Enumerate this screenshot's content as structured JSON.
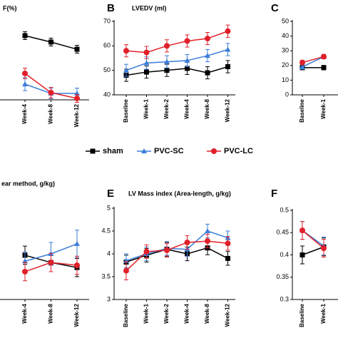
{
  "chart_data": [
    {
      "type": "line",
      "title": "F(%)",
      "categories": [
        "Week-4",
        "Week-8",
        "Week-12"
      ],
      "ylim": [
        20,
        80
      ],
      "series": [
        {
          "name": "sham",
          "color": "#000000",
          "marker": "square",
          "values": [
            69.1,
            64.2,
            58.7
          ],
          "errors": [
            3,
            3,
            3
          ]
        },
        {
          "name": "PVC-SC",
          "color": "#3b7dd8",
          "marker": "triangle",
          "values": [
            32,
            24.9,
            24.9
          ],
          "errors": [
            5,
            4,
            4
          ]
        },
        {
          "name": "PVC-LC",
          "color": "#e0202a",
          "marker": "circle",
          "values": [
            40.2,
            25.5,
            21.1
          ],
          "errors": [
            4,
            4,
            3
          ]
        }
      ]
    },
    {
      "type": "line",
      "letter": "B",
      "title": "LVEDV (ml)",
      "categories": [
        "Baseline",
        "Week-1",
        "Week-2",
        "Week-4",
        "Week-8",
        "Week-12"
      ],
      "ylim": [
        40,
        70
      ],
      "yticks": [
        40,
        50,
        60,
        70
      ],
      "series": [
        {
          "name": "sham",
          "color": "#000000",
          "marker": "square",
          "values": [
            48,
            49.3,
            50,
            50.8,
            49,
            51.5
          ],
          "errors": [
            2.5,
            2.5,
            2.5,
            2.5,
            2.5,
            2.5
          ]
        },
        {
          "name": "PVC-SC",
          "color": "#3b7dd8",
          "marker": "triangle",
          "values": [
            50,
            53,
            53.5,
            54,
            56,
            58.5
          ],
          "errors": [
            2.5,
            2.5,
            2.5,
            2.5,
            2.5,
            2.5
          ]
        },
        {
          "name": "PVC-LC",
          "color": "#e0202a",
          "marker": "circle",
          "values": [
            58,
            57.3,
            60,
            62,
            63,
            66
          ],
          "errors": [
            2.5,
            2.5,
            2.5,
            2.5,
            2.5,
            2.5
          ]
        }
      ]
    },
    {
      "type": "line",
      "letter": "C",
      "categories": [
        "Baseline",
        "Week-1"
      ],
      "ylim": [
        0,
        50
      ],
      "yticks": [
        0,
        10,
        20,
        30,
        40,
        50
      ],
      "series": [
        {
          "name": "sham",
          "color": "#000000",
          "marker": "square",
          "values": [
            18.5,
            18.5
          ],
          "errors": [
            1.5,
            1.5
          ]
        },
        {
          "name": "PVC-SC",
          "color": "#3b7dd8",
          "marker": "triangle",
          "values": [
            19,
            26
          ],
          "errors": [
            1.5,
            1.5
          ]
        },
        {
          "name": "PVC-LC",
          "color": "#e0202a",
          "marker": "circle",
          "values": [
            22,
            26
          ],
          "errors": [
            1.5,
            1.5
          ]
        }
      ]
    },
    {
      "type": "line",
      "title": "ear method, g/kg)",
      "categories": [
        "Week-4",
        "Week-8",
        "Week-12"
      ],
      "ylim": [
        3,
        5
      ],
      "series": [
        {
          "name": "sham",
          "color": "#000000",
          "marker": "square",
          "values": [
            3.97,
            3.81,
            3.7
          ],
          "errors": [
            0.2,
            0.2,
            0.2
          ]
        },
        {
          "name": "PVC-SC",
          "color": "#3b7dd8",
          "marker": "triangle",
          "values": [
            3.84,
            4.0,
            4.22
          ],
          "errors": [
            0.2,
            0.25,
            0.3
          ]
        },
        {
          "name": "PVC-LC",
          "color": "#e0202a",
          "marker": "circle",
          "values": [
            3.61,
            3.81,
            3.75
          ],
          "errors": [
            0.2,
            0.2,
            0.2
          ]
        }
      ]
    },
    {
      "type": "line",
      "letter": "E",
      "title": "LV Mass index (Area-length, g/kg)",
      "categories": [
        "Baseline",
        "Week-1",
        "Week-2",
        "Week-4",
        "Week-8",
        "Week-12"
      ],
      "ylim": [
        3,
        5
      ],
      "yticks": [
        3,
        3.5,
        4,
        4.5,
        5
      ],
      "series": [
        {
          "name": "sham",
          "color": "#000000",
          "marker": "square",
          "values": [
            3.82,
            3.97,
            4.1,
            4.0,
            4.13,
            3.9
          ],
          "errors": [
            0.15,
            0.15,
            0.15,
            0.15,
            0.15,
            0.15
          ]
        },
        {
          "name": "PVC-SC",
          "color": "#3b7dd8",
          "marker": "triangle",
          "values": [
            3.85,
            4.0,
            4.12,
            4.1,
            4.5,
            4.35
          ],
          "errors": [
            0.15,
            0.15,
            0.15,
            0.15,
            0.15,
            0.15
          ]
        },
        {
          "name": "PVC-LC",
          "color": "#e0202a",
          "marker": "circle",
          "values": [
            3.63,
            4.05,
            4.08,
            4.25,
            4.28,
            4.23
          ],
          "errors": [
            0.2,
            0.15,
            0.15,
            0.15,
            0.15,
            0.15
          ]
        }
      ]
    },
    {
      "type": "line",
      "letter": "F",
      "categories": [
        "Baseline",
        "Week-1"
      ],
      "ylim": [
        0.3,
        0.5
      ],
      "yticks": [
        0.3,
        0.35,
        0.4,
        0.45,
        0.5
      ],
      "series": [
        {
          "name": "sham",
          "color": "#000000",
          "marker": "square",
          "values": [
            0.4,
            0.418
          ],
          "errors": [
            0.02,
            0.02
          ]
        },
        {
          "name": "PVC-SC",
          "color": "#3b7dd8",
          "marker": "triangle",
          "values": [
            0.455,
            0.42
          ],
          "errors": [
            0.02,
            0.02
          ]
        },
        {
          "name": "PVC-LC",
          "color": "#e0202a",
          "marker": "circle",
          "values": [
            0.455,
            0.415
          ],
          "errors": [
            0.02,
            0.02
          ]
        }
      ]
    }
  ]
}
